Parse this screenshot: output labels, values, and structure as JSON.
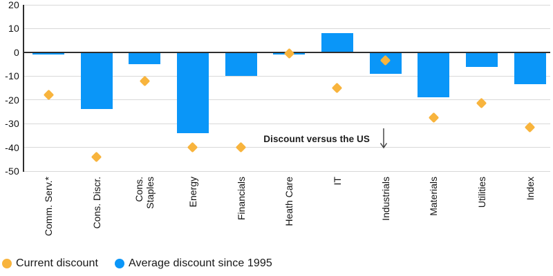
{
  "chart_data": {
    "type": "bar",
    "title": "",
    "xlabel": "",
    "ylabel": "",
    "categories": [
      "Comm. Serv.*",
      "Cons. Discr.",
      "Cons.\nStaples",
      "Energy",
      "Financials",
      "Heath Care",
      "IT",
      "Industrials",
      "Materials",
      "Utilities",
      "Index"
    ],
    "series": [
      {
        "name": "Average discount since 1995",
        "kind": "bar",
        "color": "#0a96f8",
        "values": [
          -1,
          -24,
          -5,
          -34,
          -10,
          -1,
          8,
          -9,
          -19,
          -6,
          -13.5
        ]
      },
      {
        "name": "Current discount",
        "kind": "diamond",
        "color": "#f8b43d",
        "values": [
          -18,
          -44,
          -12,
          -40,
          -40,
          -0.5,
          -15,
          -3.5,
          -27.5,
          -21.5,
          -31.5
        ]
      }
    ],
    "ylim": [
      -50,
      20
    ],
    "yticks": [
      20,
      10,
      0,
      -10,
      -20,
      -30,
      -40,
      -50
    ],
    "grid": "horizontal",
    "legend_position": "bottom-left",
    "annotation": {
      "text": "Discount versus the US",
      "arrow": "down"
    }
  },
  "legend": {
    "items": [
      {
        "label": "Current discount",
        "color": "#f8b43d"
      },
      {
        "label": "Average discount since 1995",
        "color": "#0a96f8"
      }
    ]
  },
  "colors": {
    "bar_blue": "#0a96f8",
    "diamond_yellow": "#f8b43d",
    "gridline": "#d8d8d8",
    "axis": "#2e2e2e"
  }
}
